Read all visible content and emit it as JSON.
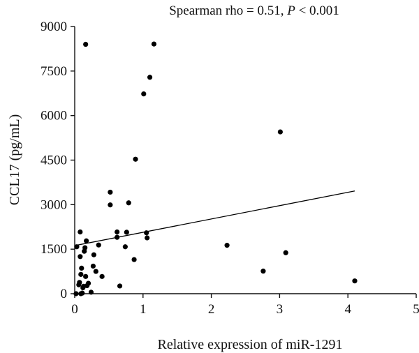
{
  "chart_data": {
    "type": "scatter",
    "title_text": "Spearman rho = 0.51, ",
    "title_p": "P",
    "title_tail": " < 0.001",
    "xlabel": "Relative expression of miR-1291",
    "ylabel": "CCL17 (pg/mL)",
    "xlim": [
      0,
      5
    ],
    "ylim": [
      0,
      9000
    ],
    "xticks": [
      0,
      1,
      2,
      3,
      4,
      5
    ],
    "yticks": [
      0,
      1500,
      3000,
      4500,
      6000,
      7500,
      9000
    ],
    "grid": false,
    "legend": "none",
    "fit_line": {
      "x": [
        0,
        4.1
      ],
      "y": [
        1620,
        3460
      ]
    },
    "points": [
      {
        "x": 0.02,
        "y": 0
      },
      {
        "x": 0.03,
        "y": 1580
      },
      {
        "x": 0.06,
        "y": 300
      },
      {
        "x": 0.07,
        "y": 380
      },
      {
        "x": 0.08,
        "y": 1250
      },
      {
        "x": 0.08,
        "y": 2080
      },
      {
        "x": 0.09,
        "y": 0
      },
      {
        "x": 0.09,
        "y": 650
      },
      {
        "x": 0.1,
        "y": 860
      },
      {
        "x": 0.11,
        "y": 20
      },
      {
        "x": 0.12,
        "y": 200
      },
      {
        "x": 0.13,
        "y": 250
      },
      {
        "x": 0.14,
        "y": 1430
      },
      {
        "x": 0.15,
        "y": 1550
      },
      {
        "x": 0.16,
        "y": 8400
      },
      {
        "x": 0.16,
        "y": 580
      },
      {
        "x": 0.17,
        "y": 1780
      },
      {
        "x": 0.18,
        "y": 270
      },
      {
        "x": 0.2,
        "y": 350
      },
      {
        "x": 0.24,
        "y": 50
      },
      {
        "x": 0.27,
        "y": 930
      },
      {
        "x": 0.28,
        "y": 1310
      },
      {
        "x": 0.31,
        "y": 750
      },
      {
        "x": 0.35,
        "y": 1640
      },
      {
        "x": 0.4,
        "y": 580
      },
      {
        "x": 0.52,
        "y": 3420
      },
      {
        "x": 0.52,
        "y": 2990
      },
      {
        "x": 0.62,
        "y": 2080
      },
      {
        "x": 0.62,
        "y": 1900
      },
      {
        "x": 0.66,
        "y": 260
      },
      {
        "x": 0.74,
        "y": 1580
      },
      {
        "x": 0.76,
        "y": 2070
      },
      {
        "x": 0.79,
        "y": 3060
      },
      {
        "x": 0.87,
        "y": 1150
      },
      {
        "x": 0.89,
        "y": 4530
      },
      {
        "x": 1.01,
        "y": 6730
      },
      {
        "x": 1.05,
        "y": 2050
      },
      {
        "x": 1.06,
        "y": 1880
      },
      {
        "x": 1.1,
        "y": 7290
      },
      {
        "x": 1.16,
        "y": 8410
      },
      {
        "x": 2.23,
        "y": 1630
      },
      {
        "x": 2.76,
        "y": 760
      },
      {
        "x": 3.01,
        "y": 5450
      },
      {
        "x": 3.09,
        "y": 1380
      },
      {
        "x": 4.1,
        "y": 430
      }
    ]
  }
}
